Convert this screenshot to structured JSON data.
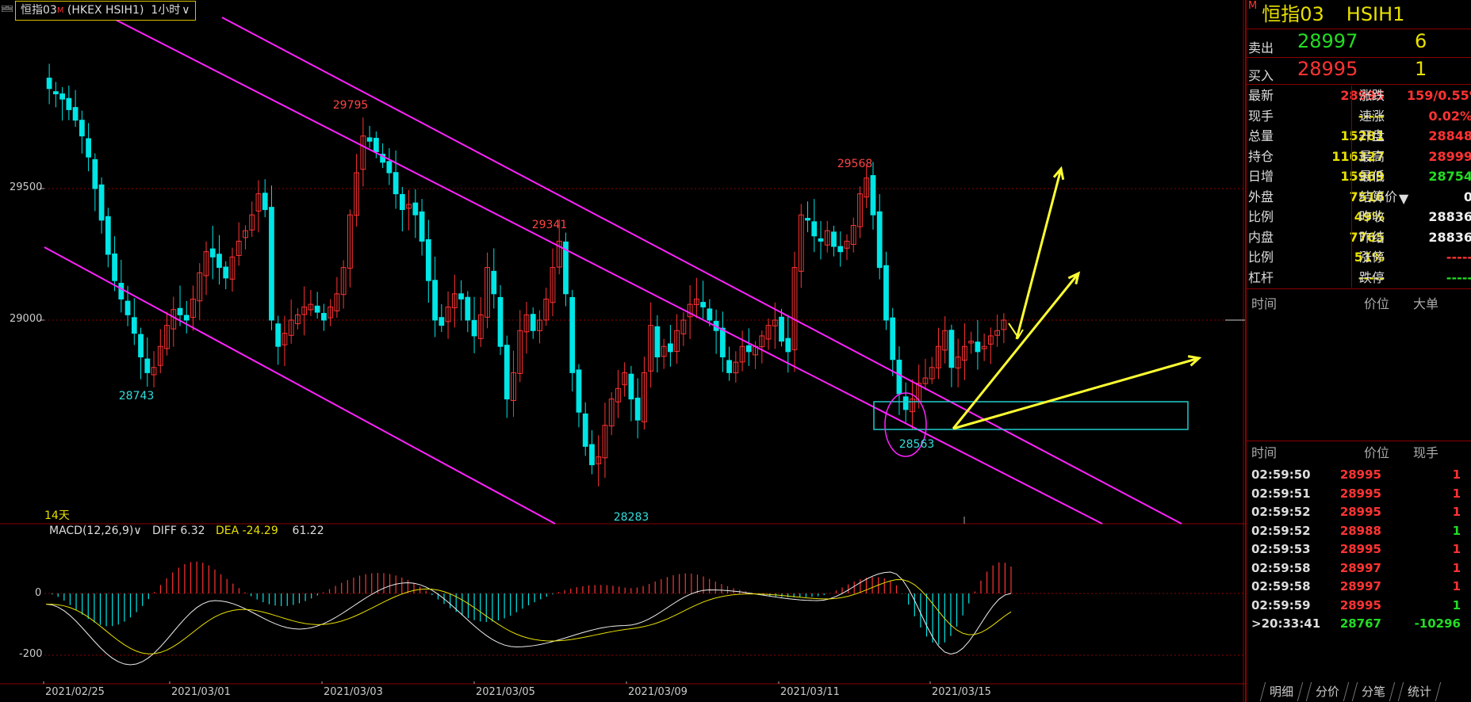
{
  "window": {
    "title": "恒指03",
    "title_mark": "M",
    "exchange": "(HKEX HSIH1)",
    "period": "1小时",
    "caret": "∨"
  },
  "chart": {
    "days_label": "14天",
    "y_ticks": [
      "29500",
      "29000"
    ],
    "macd": {
      "name": "MACD(12,26,9)",
      "caret": "∨",
      "diff": "DIFF 6.32",
      "dea": "DEA -24.29",
      "macd_value": "61.22",
      "y_ticks": [
        "0",
        "-200"
      ]
    },
    "dates": [
      "2021/02/25",
      "2021/03/01",
      "2021/03/03",
      "2021/03/05",
      "2021/03/09",
      "2021/03/11",
      "2021/03/15"
    ],
    "annotations": [
      {
        "text": "29795",
        "color": "#ff4444"
      },
      {
        "text": "29341",
        "color": "#ff4444"
      },
      {
        "text": "29568",
        "color": "#ff4444"
      },
      {
        "text": "28743",
        "color": "#33dddd"
      },
      {
        "text": "28283",
        "color": "#33dddd"
      },
      {
        "text": "28563",
        "color": "#33dddd"
      }
    ],
    "colors": {
      "up": "#ff3333",
      "down": "#00e5e5",
      "channel": "#ff22ff",
      "arrow": "#ffff33",
      "box": "#22cccc",
      "grid": "#8a0000"
    }
  },
  "chart_data": {
    "type": "candlestick",
    "y_range": [
      28230,
      30000
    ],
    "y_ticks": [
      29500,
      29000
    ],
    "x_labels": [
      "2021/02/25",
      "2021/03/01",
      "2021/03/03",
      "2021/03/05",
      "2021/03/09",
      "2021/03/11",
      "2021/03/15"
    ],
    "close_path": [
      29880,
      29860,
      29840,
      29800,
      29760,
      29700,
      29620,
      29500,
      29380,
      29250,
      29150,
      29080,
      29020,
      28950,
      28860,
      28800,
      28820,
      28900,
      28980,
      29040,
      29020,
      29000,
      29080,
      29180,
      29260,
      29240,
      29200,
      29160,
      29240,
      29300,
      29340,
      29400,
      29480,
      29420,
      29000,
      28900,
      28950,
      29000,
      29020,
      29050,
      29060,
      29030,
      29000,
      29050,
      29100,
      29200,
      29400,
      29560,
      29700,
      29680,
      29640,
      29600,
      29560,
      29480,
      29420,
      29440,
      29400,
      29300,
      29150,
      29000,
      28980,
      29050,
      29100,
      29080,
      29000,
      28940,
      29020,
      29200,
      29100,
      28900,
      28700,
      28800,
      28960,
      29020,
      28960,
      29000,
      29080,
      29200,
      29300,
      29100,
      28800,
      28650,
      28520,
      28450,
      28480,
      28600,
      28700,
      28740,
      28800,
      28700,
      28620,
      28800,
      28980,
      28860,
      28900,
      28880,
      28960,
      29000,
      29060,
      29080,
      29050,
      29000,
      28960,
      28860,
      28800,
      28840,
      28900,
      28880,
      28900,
      28940,
      28980,
      29000,
      28920,
      28880,
      29200,
      29400,
      29380,
      29320,
      29300,
      29340,
      29280,
      29260,
      29300,
      29360,
      29480,
      29540,
      29400,
      29200,
      29000,
      28850,
      28720,
      28660,
      28700,
      28760,
      28780,
      28820,
      28900,
      28960,
      28820,
      28860,
      28900,
      28920,
      28880,
      28900,
      28940,
      28960,
      29000
    ],
    "highs": [
      29795,
      29341,
      29568
    ],
    "lows": [
      28743,
      28283,
      28563
    ],
    "macd": {
      "diff": 6.32,
      "dea": -24.29,
      "macd": 61.22,
      "y_ticks": [
        0,
        -200
      ]
    }
  },
  "quote": {
    "title": "恒指03",
    "title_mark": "M",
    "code": "HSIH1",
    "sell": {
      "label": "卖出",
      "price": "28997",
      "volume": "6"
    },
    "buy": {
      "label": "买入",
      "price": "28995",
      "volume": "1"
    },
    "rows": [
      {
        "k1": "最新",
        "v1": "28995",
        "c1": "red",
        "k2": "涨跌",
        "v2": "159/0.55%",
        "c2": "red"
      },
      {
        "k1": "现手",
        "v1": "-----",
        "c1": "yellow",
        "k2": "速涨",
        "v2": "0.02%",
        "c2": "red"
      },
      {
        "k1": "总量",
        "v1": "15281",
        "c1": "yellow",
        "k2": "开盘",
        "v2": "28848",
        "c2": "red"
      },
      {
        "k1": "持仓",
        "v1": "116327",
        "c1": "yellow",
        "k2": "最高",
        "v2": "28999",
        "c2": "red"
      },
      {
        "k1": "日增",
        "v1": "15969",
        "c1": "yellow",
        "k2": "最低",
        "v2": "28754",
        "c2": "green"
      },
      {
        "k1": "外盘",
        "v1": "7516",
        "c1": "yellow",
        "k2": "结算价",
        "v2": "0",
        "c2": "white",
        "dropdown": true
      },
      {
        "k1": "比例",
        "v1": "49%",
        "c1": "yellow",
        "k2": "昨收",
        "v2": "28836",
        "c2": "white"
      },
      {
        "k1": "内盘",
        "v1": "7765",
        "c1": "yellow",
        "k2": "昨结",
        "v2": "28836",
        "c2": "white"
      },
      {
        "k1": "比例",
        "v1": "51%",
        "c1": "yellow",
        "k2": "涨停",
        "v2": "-----",
        "c2": "red"
      },
      {
        "k1": "杠杆",
        "v1": "-----",
        "c1": "yellow",
        "k2": "跌停",
        "v2": "-----",
        "c2": "green"
      }
    ],
    "big_orders_header": {
      "time": "时间",
      "price": "价位",
      "big": "大单"
    },
    "ticks_header": {
      "time": "时间",
      "price": "价位",
      "vol": "现手"
    },
    "ticks": [
      {
        "time": "02:59:50",
        "price": "28995",
        "pc": "red",
        "vol": "1",
        "vc": "red"
      },
      {
        "time": "02:59:51",
        "price": "28995",
        "pc": "red",
        "vol": "1",
        "vc": "red"
      },
      {
        "time": "02:59:52",
        "price": "28995",
        "pc": "red",
        "vol": "1",
        "vc": "red"
      },
      {
        "time": "02:59:52",
        "price": "28988",
        "pc": "red",
        "vol": "1",
        "vc": "green"
      },
      {
        "time": "02:59:53",
        "price": "28995",
        "pc": "red",
        "vol": "1",
        "vc": "red"
      },
      {
        "time": "02:59:58",
        "price": "28997",
        "pc": "red",
        "vol": "1",
        "vc": "red"
      },
      {
        "time": "02:59:58",
        "price": "28997",
        "pc": "red",
        "vol": "1",
        "vc": "red"
      },
      {
        "time": "02:59:59",
        "price": "28995",
        "pc": "red",
        "vol": "1",
        "vc": "green"
      },
      {
        "time": ">20:33:41",
        "price": "28767",
        "pc": "green",
        "vol": "-10296",
        "vc": "green"
      }
    ],
    "tabs": [
      "明细",
      "分价",
      "分笔",
      "统计"
    ]
  }
}
